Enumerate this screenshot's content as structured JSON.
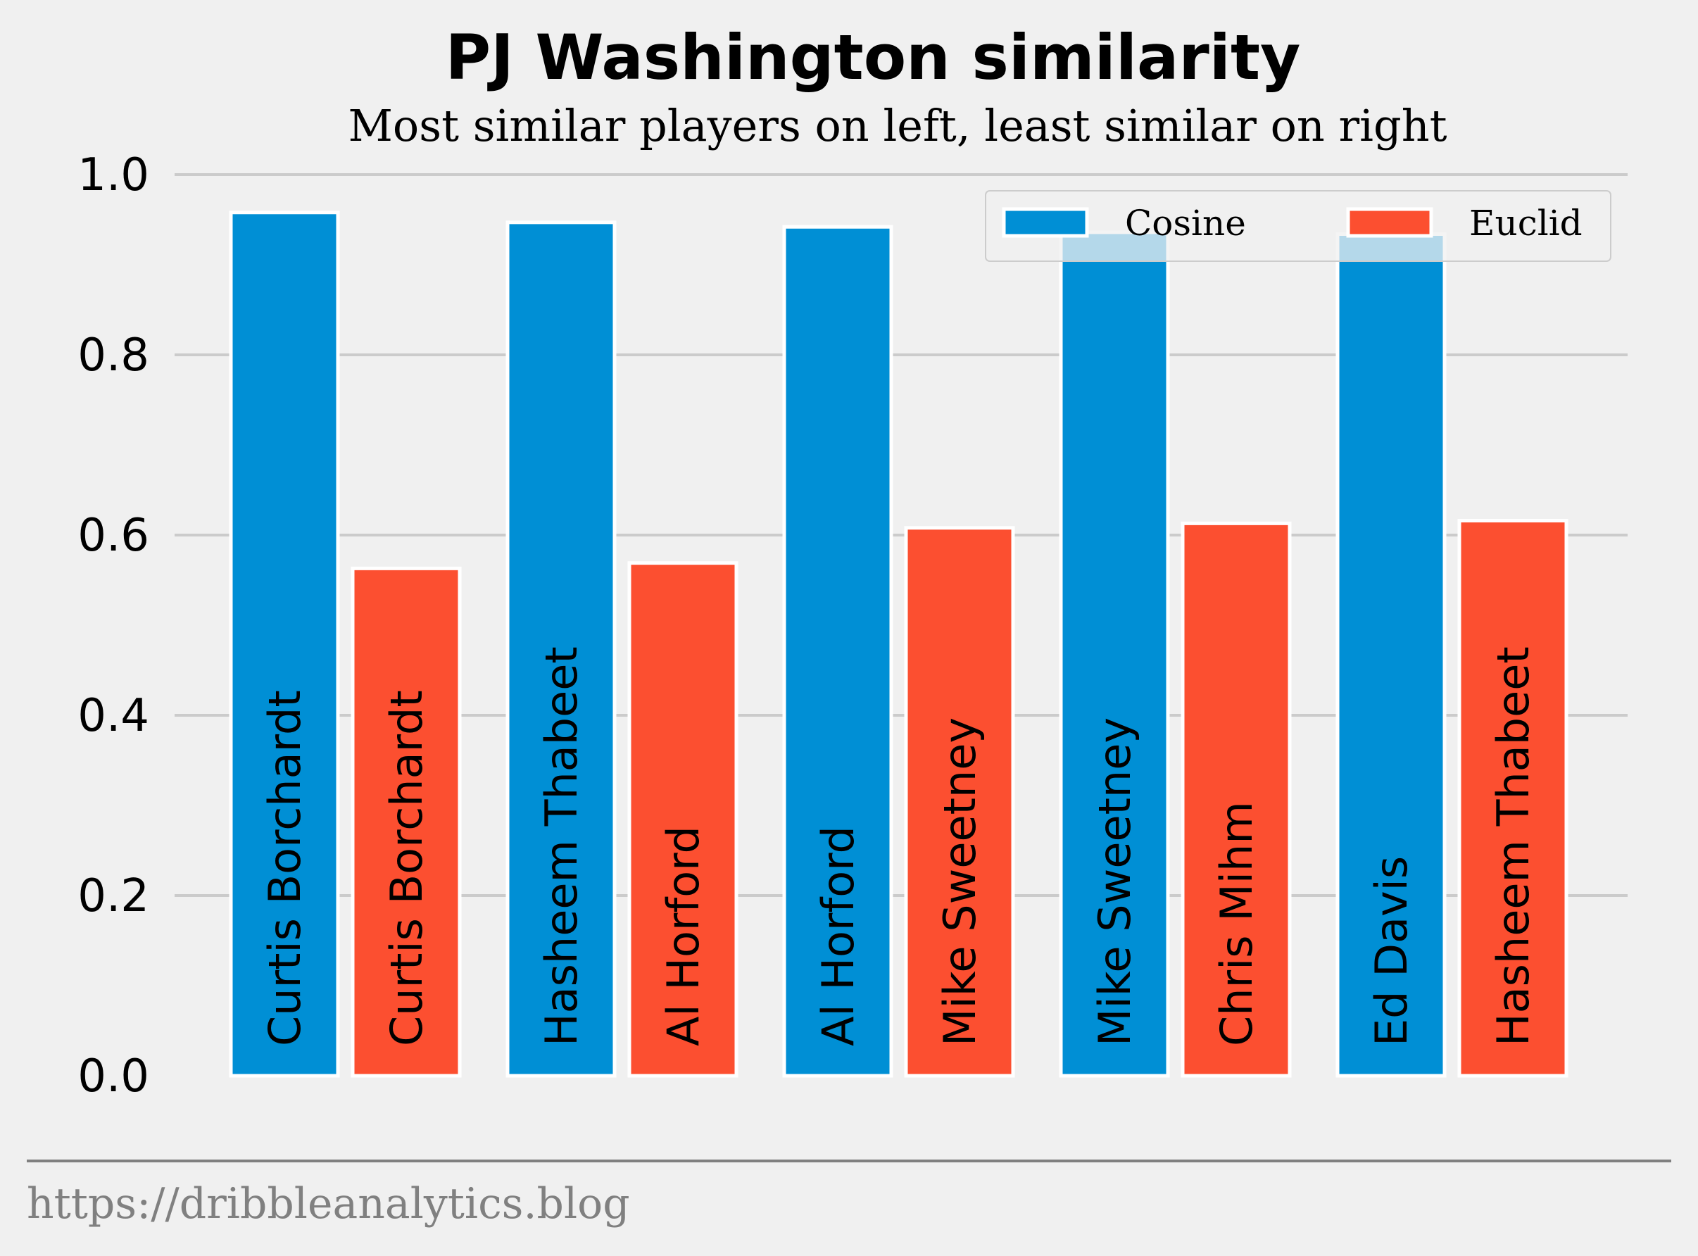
{
  "chart_data": {
    "type": "bar",
    "title": "PJ Washington similarity",
    "subtitle": "Most similar players on left, least similar on right",
    "xlabel": "",
    "ylabel": "",
    "ylim": [
      0,
      1.0
    ],
    "yticks": [
      "0.0",
      "0.2",
      "0.4",
      "0.6",
      "0.8",
      "1.0"
    ],
    "grid": true,
    "legend_position": "top-right",
    "series": [
      {
        "name": "Cosine",
        "color": "#008fd5",
        "values": [
          0.958,
          0.947,
          0.942,
          0.936,
          0.934
        ],
        "labels": [
          "Curtis Borchardt",
          "Hasheem Thabeet",
          "Al Horford",
          "Mike Sweetney",
          "Ed Davis"
        ]
      },
      {
        "name": "Euclid",
        "color": "#fc4f30",
        "values": [
          0.563,
          0.569,
          0.608,
          0.613,
          0.616
        ],
        "labels": [
          "Curtis Borchardt",
          "Al Horford",
          "Mike Sweetney",
          "Chris Mihm",
          "Hasheem Thabeet"
        ]
      }
    ],
    "footer": "https://dribbleanalytics.blog"
  }
}
